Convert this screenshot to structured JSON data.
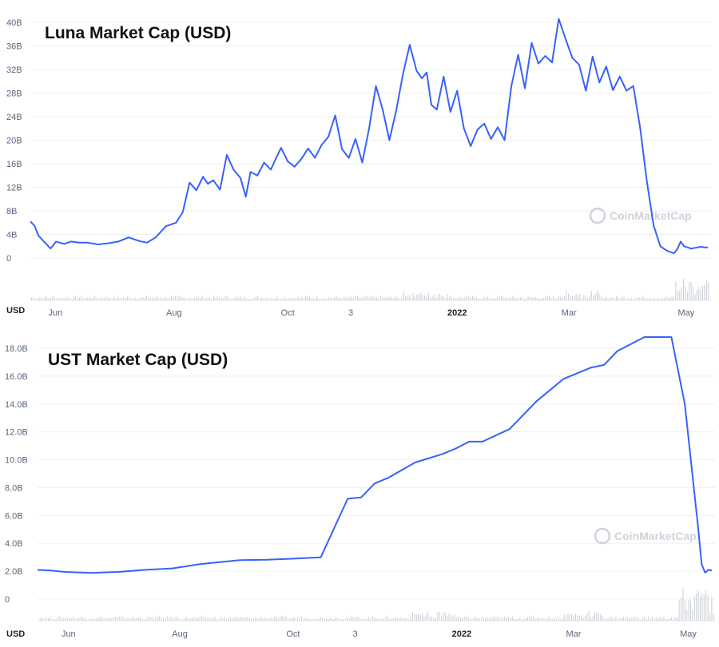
{
  "watermark": "CoinMarketCap",
  "colors": {
    "line": "#3861fb",
    "grid": "#eef0f3",
    "volume": "#c9ced6",
    "axis_text": "#58667e"
  },
  "chart_data": [
    {
      "type": "line",
      "title": "Luna Market Cap (USD)",
      "currency_label": "USD",
      "x_tick_labels": [
        {
          "label": "Jun",
          "bold": false,
          "t": 0.037
        },
        {
          "label": "Aug",
          "bold": false,
          "t": 0.212
        },
        {
          "label": "Oct",
          "bold": false,
          "t": 0.38
        },
        {
          "label": "3",
          "bold": false,
          "t": 0.473
        },
        {
          "label": "2022",
          "bold": true,
          "t": 0.63
        },
        {
          "label": "Mar",
          "bold": false,
          "t": 0.795
        },
        {
          "label": "May",
          "bold": false,
          "t": 0.968
        }
      ],
      "y_tick_labels": [
        "0",
        "4B",
        "8B",
        "12B",
        "16B",
        "20B",
        "24B",
        "28B",
        "32B",
        "36B",
        "40B"
      ],
      "ylim": [
        0,
        40
      ],
      "series": [
        {
          "name": "Luna market cap (B USD)",
          "t": [
            0,
            0.006,
            0.012,
            0.02,
            0.03,
            0.038,
            0.05,
            0.06,
            0.072,
            0.085,
            0.1,
            0.115,
            0.13,
            0.145,
            0.16,
            0.172,
            0.185,
            0.2,
            0.215,
            0.225,
            0.235,
            0.245,
            0.255,
            0.262,
            0.27,
            0.28,
            0.29,
            0.3,
            0.31,
            0.318,
            0.325,
            0.335,
            0.345,
            0.355,
            0.362,
            0.37,
            0.38,
            0.39,
            0.4,
            0.41,
            0.42,
            0.43,
            0.44,
            0.45,
            0.46,
            0.47,
            0.48,
            0.49,
            0.5,
            0.51,
            0.52,
            0.53,
            0.54,
            0.55,
            0.56,
            0.57,
            0.578,
            0.585,
            0.592,
            0.6,
            0.61,
            0.62,
            0.63,
            0.64,
            0.65,
            0.66,
            0.67,
            0.68,
            0.69,
            0.7,
            0.71,
            0.72,
            0.73,
            0.74,
            0.75,
            0.76,
            0.77,
            0.78,
            0.79,
            0.8,
            0.81,
            0.82,
            0.83,
            0.84,
            0.85,
            0.86,
            0.87,
            0.88,
            0.89,
            0.9,
            0.91,
            0.92,
            0.93,
            0.94,
            0.95,
            0.955,
            0.96,
            0.965,
            0.97,
            0.975,
            0.98,
            0.985,
            0.99,
            0.995,
            1.0
          ],
          "values": [
            6.2,
            5.5,
            3.8,
            2.8,
            1.6,
            2.8,
            2.4,
            2.8,
            2.6,
            2.6,
            2.3,
            2.5,
            2.8,
            3.5,
            2.9,
            2.6,
            3.5,
            5.4,
            6.0,
            7.8,
            12.8,
            11.5,
            13.8,
            12.6,
            13.2,
            11.6,
            17.5,
            15.0,
            13.6,
            10.4,
            14.6,
            14.0,
            16.2,
            15.0,
            16.8,
            18.7,
            16.4,
            15.5,
            16.8,
            18.6,
            17.0,
            19.2,
            20.6,
            24.2,
            18.5,
            17.0,
            20.2,
            16.2,
            22.0,
            29.2,
            25.2,
            20.0,
            25.0,
            31.2,
            36.2,
            31.8,
            30.5,
            31.5,
            26.0,
            25.2,
            30.8,
            24.8,
            28.4,
            22.0,
            19.0,
            21.8,
            22.8,
            20.2,
            22.2,
            20.0,
            29.2,
            34.5,
            28.8,
            36.5,
            33.0,
            34.3,
            33.2,
            40.6,
            37.2,
            34.0,
            32.8,
            28.4,
            34.2,
            29.8,
            32.5,
            28.5,
            30.8,
            28.4,
            29.2,
            22.2,
            13.0,
            5.5,
            2.0,
            1.2,
            0.8,
            1.5,
            2.8,
            2.0,
            1.8,
            1.6,
            1.7,
            1.8,
            1.9,
            1.8,
            1.8
          ]
        }
      ]
    },
    {
      "type": "line",
      "title": "UST Market Cap (USD)",
      "currency_label": "USD",
      "x_tick_labels": [
        {
          "label": "Jun",
          "bold": false,
          "t": 0.046
        },
        {
          "label": "Aug",
          "bold": false,
          "t": 0.211
        },
        {
          "label": "Oct",
          "bold": false,
          "t": 0.379
        },
        {
          "label": "3",
          "bold": false,
          "t": 0.471
        },
        {
          "label": "2022",
          "bold": true,
          "t": 0.629
        },
        {
          "label": "Mar",
          "bold": false,
          "t": 0.795
        },
        {
          "label": "May",
          "bold": false,
          "t": 0.965
        }
      ],
      "y_tick_labels": [
        "0",
        "2.0B",
        "4.0B",
        "6.0B",
        "8.0B",
        "10.0B",
        "12.0B",
        "14.0B",
        "16.0B",
        "18.0B"
      ],
      "ylim": [
        0,
        18
      ],
      "series": [
        {
          "name": "UST market cap (B USD)",
          "t": [
            0,
            0.02,
            0.04,
            0.08,
            0.12,
            0.16,
            0.2,
            0.24,
            0.26,
            0.3,
            0.34,
            0.38,
            0.42,
            0.46,
            0.48,
            0.5,
            0.52,
            0.56,
            0.6,
            0.62,
            0.64,
            0.66,
            0.7,
            0.74,
            0.78,
            0.82,
            0.84,
            0.86,
            0.9,
            0.94,
            0.96,
            0.98,
            0.985,
            0.99,
            0.995,
            1.0
          ],
          "values": [
            2.1,
            2.05,
            1.95,
            1.88,
            1.95,
            2.1,
            2.2,
            2.5,
            2.6,
            2.8,
            2.82,
            2.9,
            3.0,
            7.2,
            7.3,
            8.3,
            8.7,
            9.8,
            10.4,
            10.8,
            11.3,
            11.3,
            12.2,
            14.2,
            15.8,
            16.6,
            16.8,
            17.8,
            18.8,
            18.8,
            14.0,
            5.0,
            2.5,
            1.9,
            2.1,
            2.05
          ]
        }
      ]
    }
  ]
}
